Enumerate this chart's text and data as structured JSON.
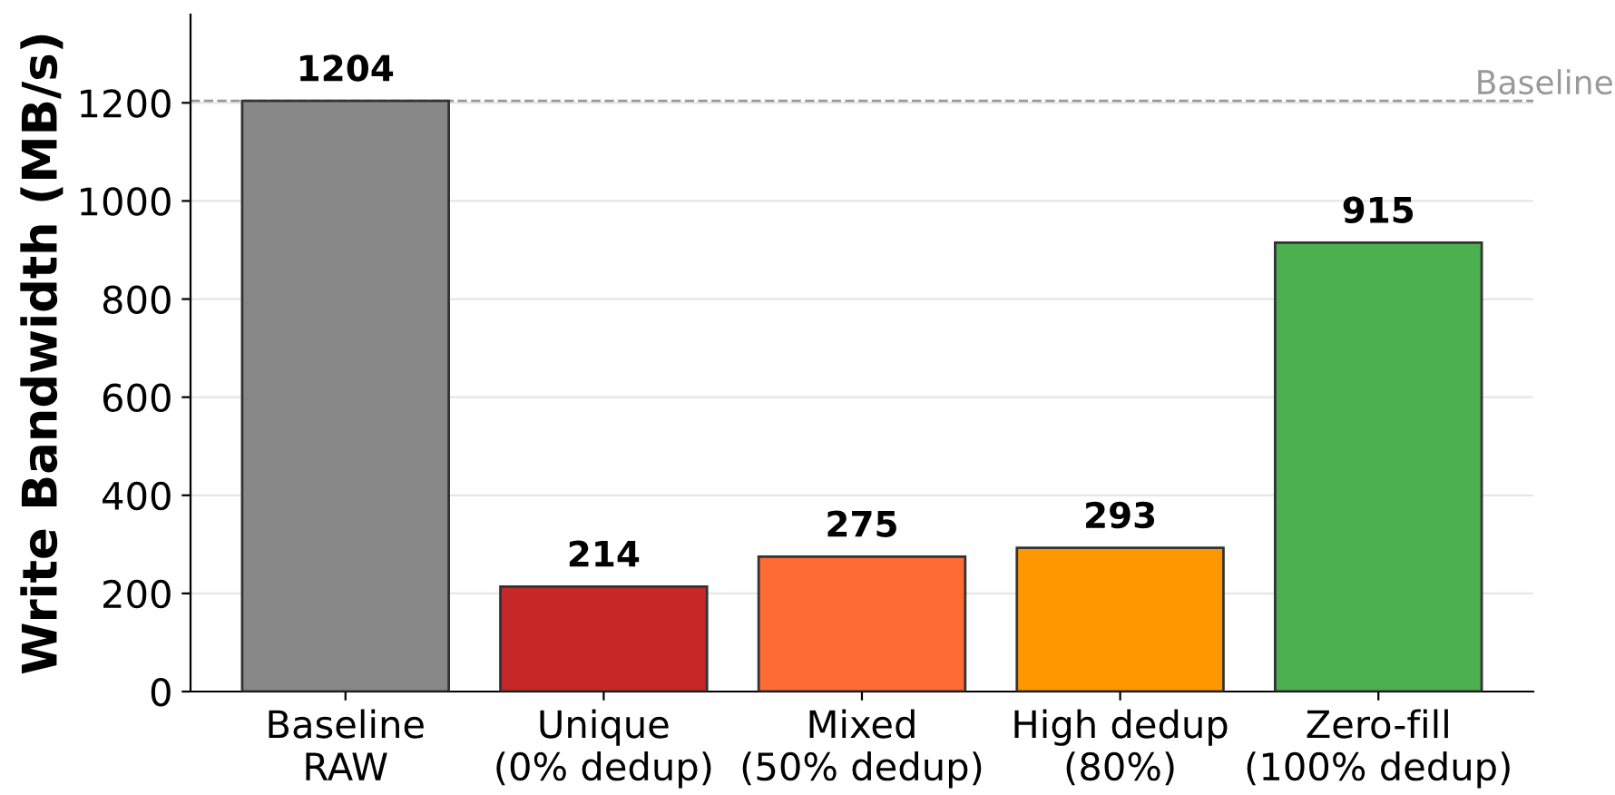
{
  "chart_data": {
    "type": "bar",
    "ylabel": "Write Bandwidth (MB/s)",
    "categories": [
      "Baseline\nRAW",
      "Unique\n(0% dedup)",
      "Mixed\n(50% dedup)",
      "High dedup\n(80%)",
      "Zero-fill\n(100% dedup)"
    ],
    "values": [
      1204,
      214,
      275,
      293,
      915
    ],
    "colors": [
      "#888888",
      "#c62828",
      "#ff6b35",
      "#ff9800",
      "#4caf50"
    ],
    "ylim": [
      0,
      1380
    ],
    "yticks": [
      0,
      200,
      400,
      600,
      800,
      1000,
      1200
    ],
    "grid": "y",
    "data_labels": true,
    "ref_lines": [
      {
        "axis": "y",
        "value": 1204,
        "label": "Baseline",
        "color": "#999999",
        "line_style": "dashed"
      }
    ]
  }
}
